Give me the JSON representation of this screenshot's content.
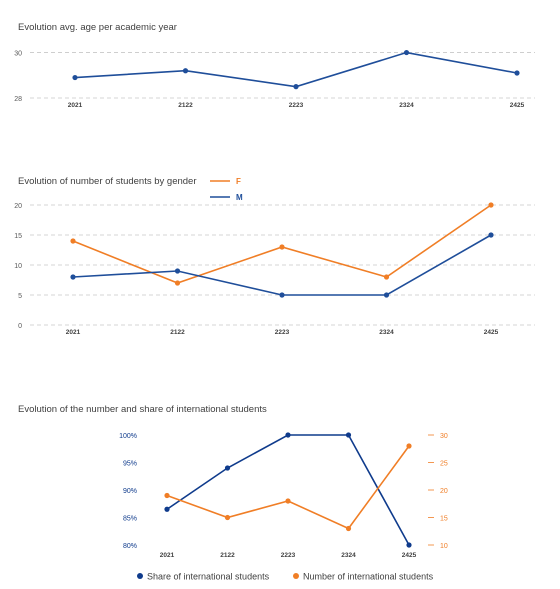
{
  "chart_data": [
    {
      "type": "line",
      "title": "Evolution avg. age per academic year",
      "categories": [
        "2021",
        "2122",
        "2223",
        "2324",
        "2425"
      ],
      "y_ticks": [
        "28",
        "30"
      ],
      "ylim": [
        28,
        30.2
      ],
      "grid": true,
      "series": [
        {
          "name": "",
          "color": "#1f4e9a",
          "values": [
            28.9,
            29.2,
            28.5,
            30.0,
            29.1
          ]
        }
      ]
    },
    {
      "type": "line",
      "title": "Evolution of number of students by gender",
      "categories": [
        "2021",
        "2122",
        "2223",
        "2324",
        "2425"
      ],
      "y_ticks": [
        "0",
        "5",
        "10",
        "15",
        "20"
      ],
      "ylim": [
        0,
        20
      ],
      "grid": true,
      "legend_position": "top",
      "series": [
        {
          "name": "F",
          "color": "#f07e26",
          "values": [
            14,
            7,
            13,
            8,
            20
          ]
        },
        {
          "name": "M",
          "color": "#1f4e9a",
          "values": [
            8,
            9,
            5,
            5,
            15
          ]
        }
      ]
    },
    {
      "type": "line",
      "title": "Evolution of the number and share of international students",
      "categories": [
        "2021",
        "2122",
        "2223",
        "2324",
        "2425"
      ],
      "y_ticks_left": [
        "80%",
        "85%",
        "90%",
        "95%",
        "100%"
      ],
      "y_ticks_right": [
        "10",
        "15",
        "20",
        "25",
        "30"
      ],
      "ylim_left": [
        80,
        100
      ],
      "ylim_right": [
        10,
        30
      ],
      "grid": false,
      "legend_position": "bottom",
      "series": [
        {
          "name": "Share of international students",
          "axis": "left",
          "color": "#0f3b8c",
          "values": [
            86.5,
            94,
            100,
            100,
            80
          ]
        },
        {
          "name": "Number of international students",
          "axis": "right",
          "color": "#f07e26",
          "values": [
            19,
            15,
            18,
            13,
            28
          ]
        }
      ]
    }
  ]
}
